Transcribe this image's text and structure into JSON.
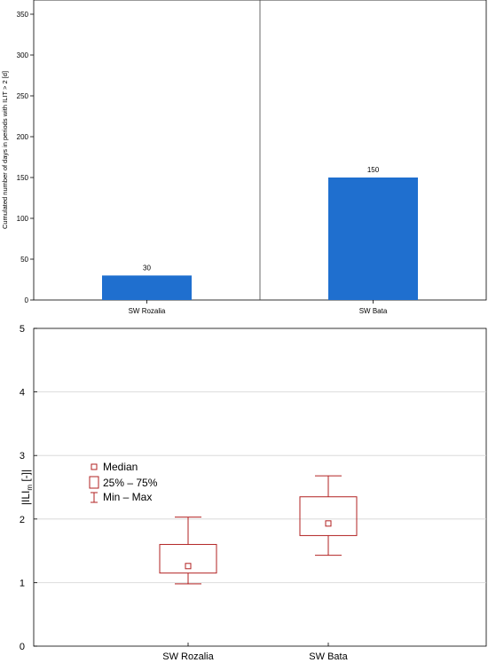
{
  "chart_data": [
    {
      "type": "bar",
      "categories": [
        "SW Rozalia",
        "SW Bata"
      ],
      "values": [
        30,
        150
      ],
      "data_labels": [
        "30",
        "150"
      ],
      "ylabel": "Cumulated number of days in periods with ILIT > 2 [d]",
      "ylim": [
        0,
        350
      ],
      "yticks": [
        0,
        50,
        100,
        150,
        200,
        250,
        300,
        350
      ],
      "ytick_labels": [
        "0",
        "50",
        "100",
        "150",
        "200",
        "250",
        "300",
        "350"
      ],
      "bar_color": "#1f6fcf",
      "grid": false
    },
    {
      "type": "box",
      "categories": [
        "SW Rozalia",
        "SW Bata"
      ],
      "series": [
        {
          "category": "SW Rozalia",
          "min": 0.98,
          "q1": 1.15,
          "median": 1.26,
          "q3": 1.6,
          "max": 2.03
        },
        {
          "category": "SW Bata",
          "min": 1.43,
          "q1": 1.74,
          "median": 1.93,
          "q3": 2.35,
          "max": 2.68
        }
      ],
      "ylabel": {
        "main": "ILI",
        "sub": "m",
        "suffix": " [-]"
      },
      "ylim": [
        0,
        5
      ],
      "yticks": [
        0,
        1,
        2,
        3,
        4,
        5
      ],
      "ytick_labels": [
        "0",
        "1",
        "2",
        "3",
        "4",
        "5"
      ],
      "grid": true,
      "legend": {
        "placement": "middle-left",
        "entries": [
          "Median",
          "25% – 75%",
          "Min – Max"
        ]
      },
      "color": "#b22222"
    }
  ]
}
